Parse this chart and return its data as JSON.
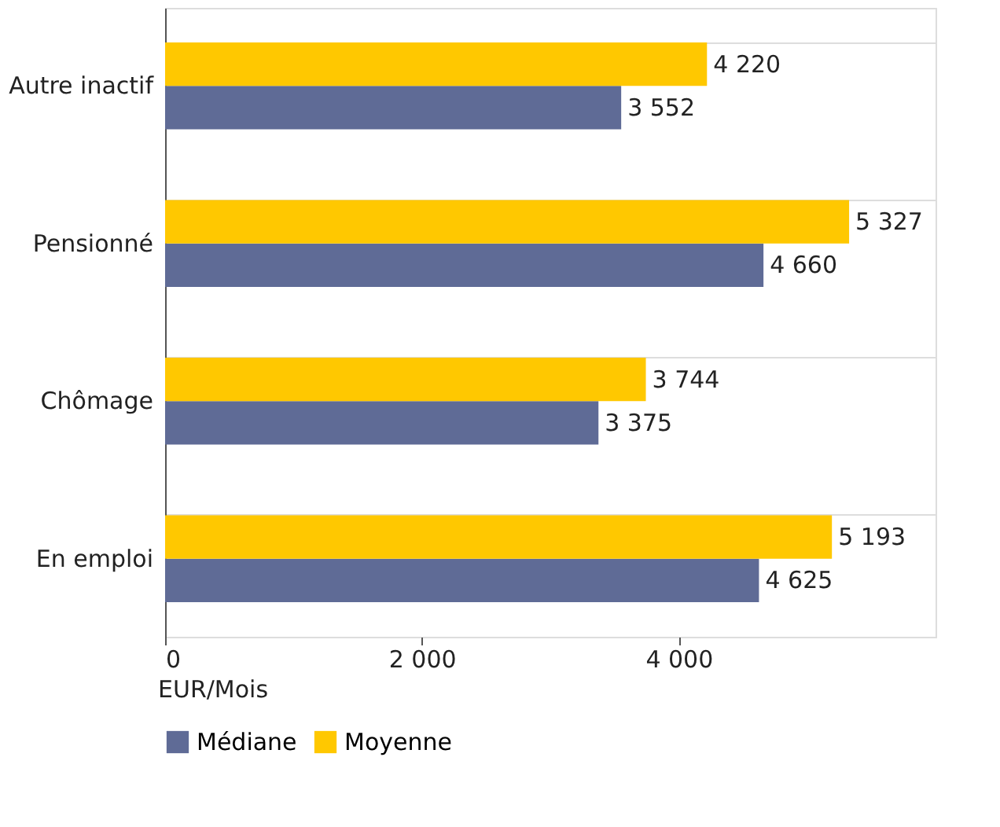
{
  "chart_data": {
    "type": "bar",
    "orientation": "horizontal",
    "categories": [
      "Autre inactif",
      "Pensionné",
      "Chômage",
      "En emploi"
    ],
    "series": [
      {
        "name": "Médiane",
        "color": "#5f6b96",
        "values": [
          3552,
          4660,
          3375,
          4625
        ],
        "value_labels": [
          "3 552",
          "4 660",
          "3 375",
          "4 625"
        ]
      },
      {
        "name": "Moyenne",
        "color": "#ffc800",
        "values": [
          4220,
          5327,
          3744,
          5193
        ],
        "value_labels": [
          "4 220",
          "5 327",
          "3 744",
          "5 193"
        ]
      }
    ],
    "xlabel": "EUR/Mois",
    "xlim": [
      0,
      6000
    ],
    "xticks": [
      0,
      {
        "value": 2000,
        "label": "2 000"
      },
      {
        "value": 4000,
        "label": "4 000"
      }
    ],
    "grid": "y",
    "legend": "bottom"
  }
}
